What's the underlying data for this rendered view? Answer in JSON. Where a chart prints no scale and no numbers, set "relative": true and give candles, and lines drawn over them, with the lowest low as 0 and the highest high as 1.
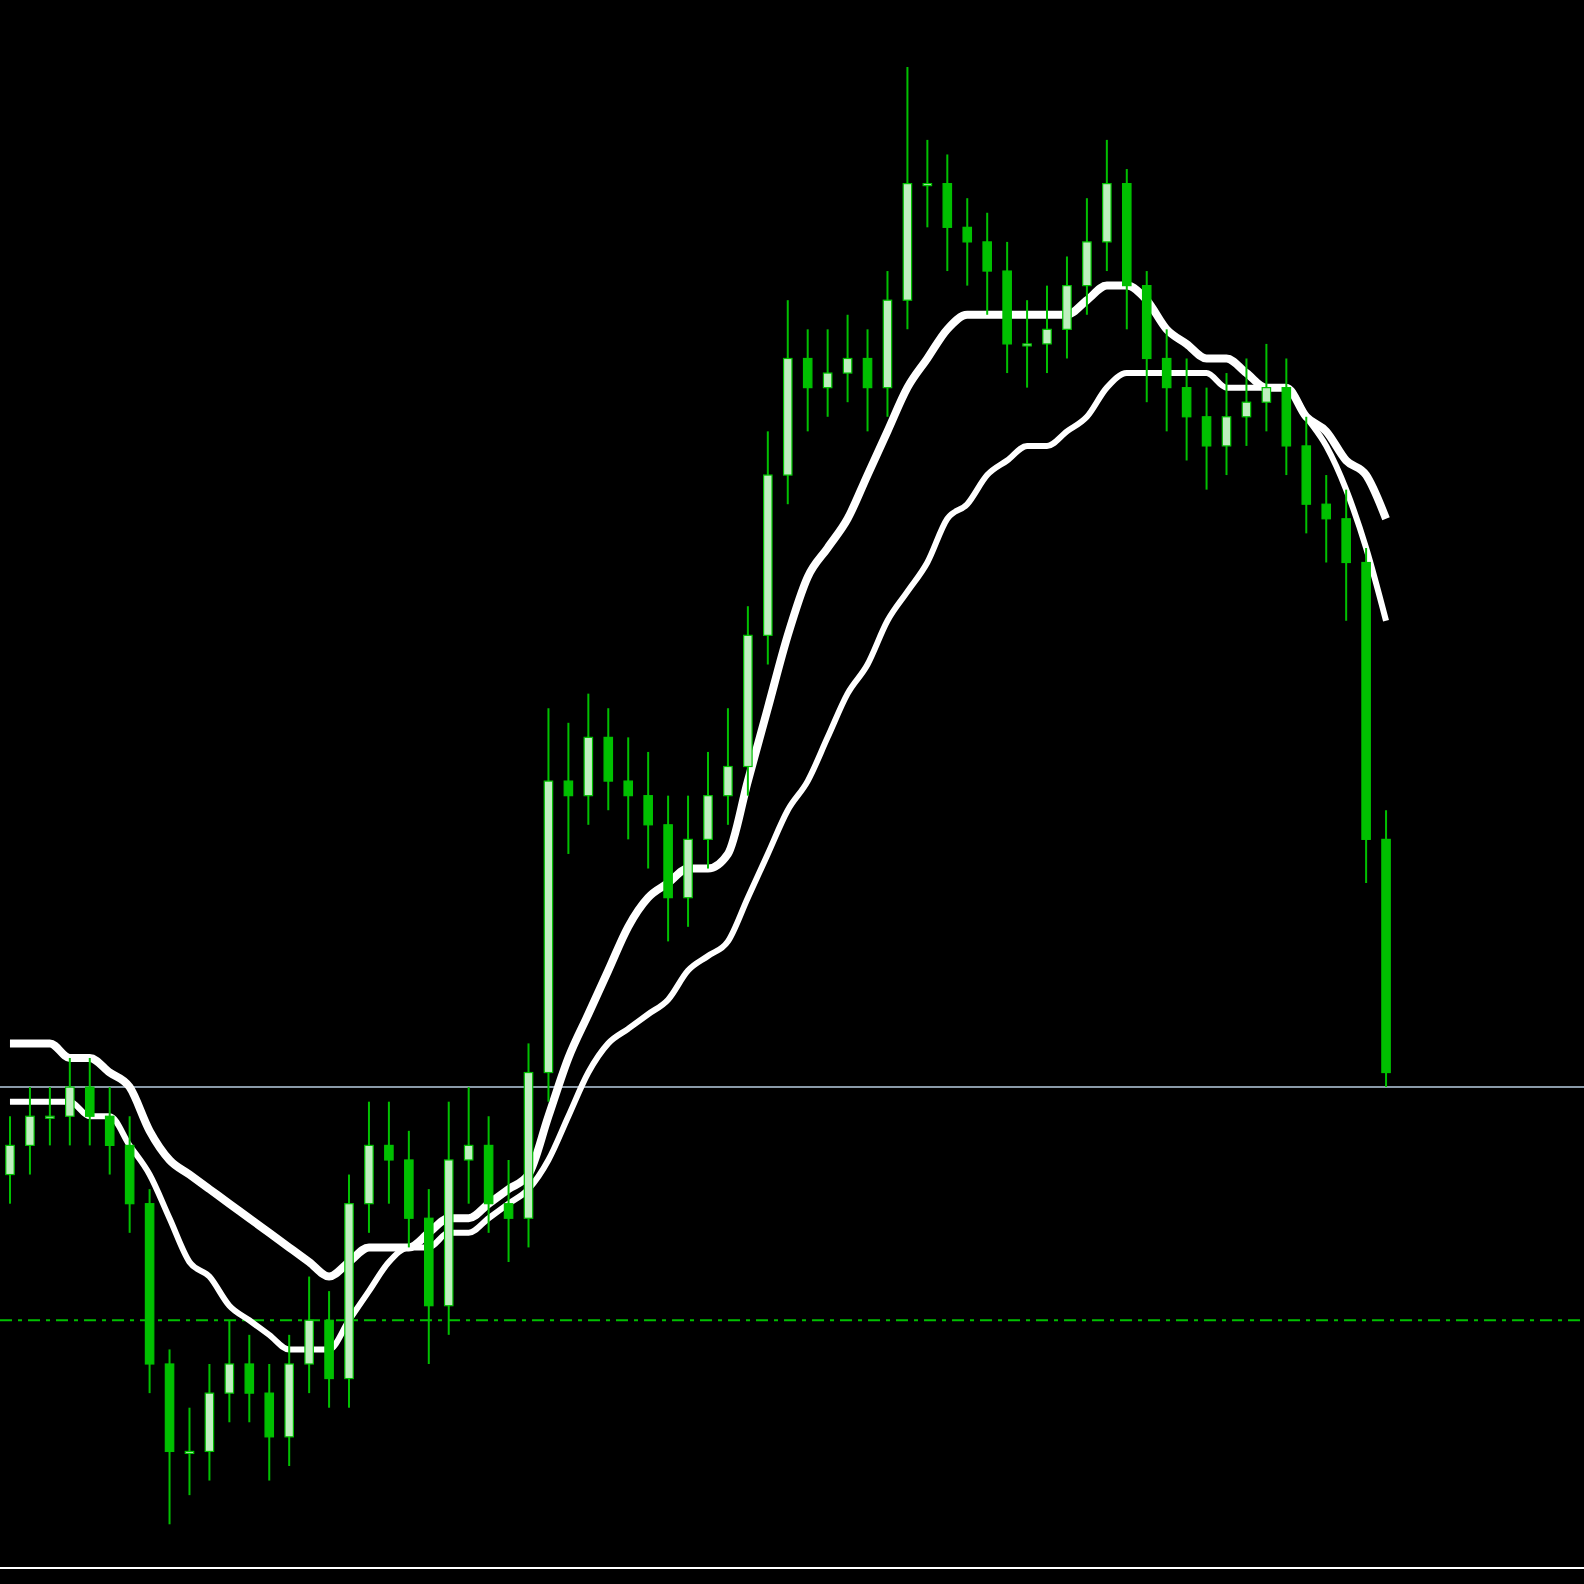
{
  "chart_data": {
    "type": "candlestick",
    "relative": true,
    "tick_labels": false,
    "categories": [
      null,
      null,
      null,
      null,
      null,
      null,
      null,
      null,
      null,
      null,
      null,
      null,
      null,
      null,
      null,
      null,
      null,
      null,
      null,
      null,
      null,
      null,
      null,
      null,
      null,
      null,
      null,
      null,
      null,
      null,
      null,
      null,
      null,
      null,
      null,
      null,
      null,
      null,
      null,
      null,
      null,
      null,
      null,
      null,
      null,
      null,
      null,
      null,
      null,
      null,
      null,
      null,
      null,
      null,
      null,
      null,
      null,
      null,
      null,
      null,
      null,
      null,
      null,
      null,
      null,
      null,
      null,
      null,
      null,
      null
    ],
    "series": [
      {
        "type": "candlestick",
        "color": "#00c000",
        "ohlc": [
          [
            0.24,
            0.28,
            0.22,
            0.26
          ],
          [
            0.26,
            0.3,
            0.24,
            0.28
          ],
          [
            0.28,
            0.3,
            0.26,
            0.28
          ],
          [
            0.28,
            0.32,
            0.26,
            0.3
          ],
          [
            0.3,
            0.32,
            0.26,
            0.28
          ],
          [
            0.28,
            0.3,
            0.24,
            0.26
          ],
          [
            0.26,
            0.28,
            0.2,
            0.22
          ],
          [
            0.22,
            0.23,
            0.09,
            0.11
          ],
          [
            0.11,
            0.12,
            0.0,
            0.05
          ],
          [
            0.05,
            0.08,
            0.02,
            0.05
          ],
          [
            0.05,
            0.11,
            0.03,
            0.09
          ],
          [
            0.09,
            0.14,
            0.07,
            0.11
          ],
          [
            0.11,
            0.13,
            0.07,
            0.09
          ],
          [
            0.09,
            0.11,
            0.03,
            0.06
          ],
          [
            0.06,
            0.13,
            0.04,
            0.11
          ],
          [
            0.11,
            0.17,
            0.09,
            0.14
          ],
          [
            0.14,
            0.16,
            0.08,
            0.1
          ],
          [
            0.1,
            0.24,
            0.08,
            0.22
          ],
          [
            0.22,
            0.29,
            0.2,
            0.26
          ],
          [
            0.26,
            0.29,
            0.22,
            0.25
          ],
          [
            0.25,
            0.27,
            0.19,
            0.21
          ],
          [
            0.21,
            0.23,
            0.11,
            0.15
          ],
          [
            0.15,
            0.29,
            0.13,
            0.25
          ],
          [
            0.25,
            0.3,
            0.22,
            0.26
          ],
          [
            0.26,
            0.28,
            0.2,
            0.22
          ],
          [
            0.22,
            0.25,
            0.18,
            0.21
          ],
          [
            0.21,
            0.33,
            0.19,
            0.31
          ],
          [
            0.31,
            0.56,
            0.29,
            0.51
          ],
          [
            0.51,
            0.55,
            0.46,
            0.5
          ],
          [
            0.5,
            0.57,
            0.48,
            0.54
          ],
          [
            0.54,
            0.56,
            0.49,
            0.51
          ],
          [
            0.51,
            0.54,
            0.47,
            0.5
          ],
          [
            0.5,
            0.53,
            0.45,
            0.48
          ],
          [
            0.48,
            0.5,
            0.4,
            0.43
          ],
          [
            0.43,
            0.5,
            0.41,
            0.47
          ],
          [
            0.47,
            0.53,
            0.45,
            0.5
          ],
          [
            0.5,
            0.56,
            0.48,
            0.52
          ],
          [
            0.52,
            0.63,
            0.5,
            0.61
          ],
          [
            0.61,
            0.75,
            0.59,
            0.72
          ],
          [
            0.72,
            0.84,
            0.7,
            0.8
          ],
          [
            0.8,
            0.82,
            0.75,
            0.78
          ],
          [
            0.78,
            0.82,
            0.76,
            0.79
          ],
          [
            0.79,
            0.83,
            0.77,
            0.8
          ],
          [
            0.8,
            0.82,
            0.75,
            0.78
          ],
          [
            0.78,
            0.86,
            0.76,
            0.84
          ],
          [
            0.84,
            1.0,
            0.82,
            0.92
          ],
          [
            0.92,
            0.95,
            0.89,
            0.92
          ],
          [
            0.92,
            0.94,
            0.86,
            0.89
          ],
          [
            0.89,
            0.91,
            0.85,
            0.88
          ],
          [
            0.88,
            0.9,
            0.83,
            0.86
          ],
          [
            0.86,
            0.88,
            0.79,
            0.81
          ],
          [
            0.81,
            0.84,
            0.78,
            0.81
          ],
          [
            0.81,
            0.85,
            0.79,
            0.82
          ],
          [
            0.82,
            0.87,
            0.8,
            0.85
          ],
          [
            0.85,
            0.91,
            0.83,
            0.88
          ],
          [
            0.88,
            0.95,
            0.86,
            0.92
          ],
          [
            0.92,
            0.93,
            0.82,
            0.85
          ],
          [
            0.85,
            0.86,
            0.77,
            0.8
          ],
          [
            0.8,
            0.82,
            0.75,
            0.78
          ],
          [
            0.78,
            0.8,
            0.73,
            0.76
          ],
          [
            0.76,
            0.78,
            0.71,
            0.74
          ],
          [
            0.74,
            0.79,
            0.72,
            0.76
          ],
          [
            0.76,
            0.8,
            0.74,
            0.77
          ],
          [
            0.77,
            0.81,
            0.75,
            0.78
          ],
          [
            0.78,
            0.8,
            0.72,
            0.74
          ],
          [
            0.74,
            0.76,
            0.68,
            0.7
          ],
          [
            0.7,
            0.72,
            0.66,
            0.69
          ],
          [
            0.69,
            0.71,
            0.62,
            0.66
          ],
          [
            0.66,
            0.67,
            0.44,
            0.47
          ],
          [
            0.47,
            0.49,
            0.3,
            0.31
          ]
        ]
      },
      {
        "type": "line",
        "color": "#ffffff",
        "values": [
          0.33,
          0.33,
          0.33,
          0.32,
          0.32,
          0.31,
          0.3,
          0.27,
          0.25,
          0.24,
          0.23,
          0.22,
          0.21,
          0.2,
          0.19,
          0.18,
          0.17,
          0.18,
          0.19,
          0.19,
          0.19,
          0.2,
          0.21,
          0.21,
          0.22,
          0.23,
          0.24,
          0.28,
          0.32,
          0.35,
          0.38,
          0.41,
          0.43,
          0.44,
          0.45,
          0.45,
          0.46,
          0.51,
          0.56,
          0.61,
          0.65,
          0.67,
          0.69,
          0.72,
          0.75,
          0.78,
          0.8,
          0.82,
          0.83,
          0.83,
          0.83,
          0.83,
          0.83,
          0.83,
          0.84,
          0.85,
          0.85,
          0.84,
          0.82,
          0.81,
          0.8,
          0.8,
          0.79,
          0.78,
          0.78,
          0.76,
          0.75,
          0.73,
          0.72,
          0.69
        ]
      },
      {
        "type": "line",
        "color": "#ffffff",
        "values": [
          0.29,
          0.29,
          0.29,
          0.29,
          0.28,
          0.28,
          0.26,
          0.24,
          0.21,
          0.18,
          0.17,
          0.15,
          0.14,
          0.13,
          0.12,
          0.12,
          0.12,
          0.14,
          0.16,
          0.18,
          0.19,
          0.19,
          0.2,
          0.2,
          0.21,
          0.22,
          0.23,
          0.25,
          0.28,
          0.31,
          0.33,
          0.34,
          0.35,
          0.36,
          0.38,
          0.39,
          0.4,
          0.43,
          0.46,
          0.49,
          0.51,
          0.54,
          0.57,
          0.59,
          0.62,
          0.64,
          0.66,
          0.69,
          0.7,
          0.72,
          0.73,
          0.74,
          0.74,
          0.75,
          0.76,
          0.78,
          0.79,
          0.79,
          0.79,
          0.79,
          0.79,
          0.78,
          0.78,
          0.78,
          0.78,
          0.76,
          0.74,
          0.71,
          0.67,
          0.62
        ]
      }
    ],
    "ref_lines": [
      {
        "axis": "y",
        "value": 0.3,
        "color": "#8a9aa8",
        "line_style": "solid"
      },
      {
        "axis": "y",
        "value": 0.14,
        "color": "#00c000",
        "line_style": "dashed"
      }
    ]
  }
}
